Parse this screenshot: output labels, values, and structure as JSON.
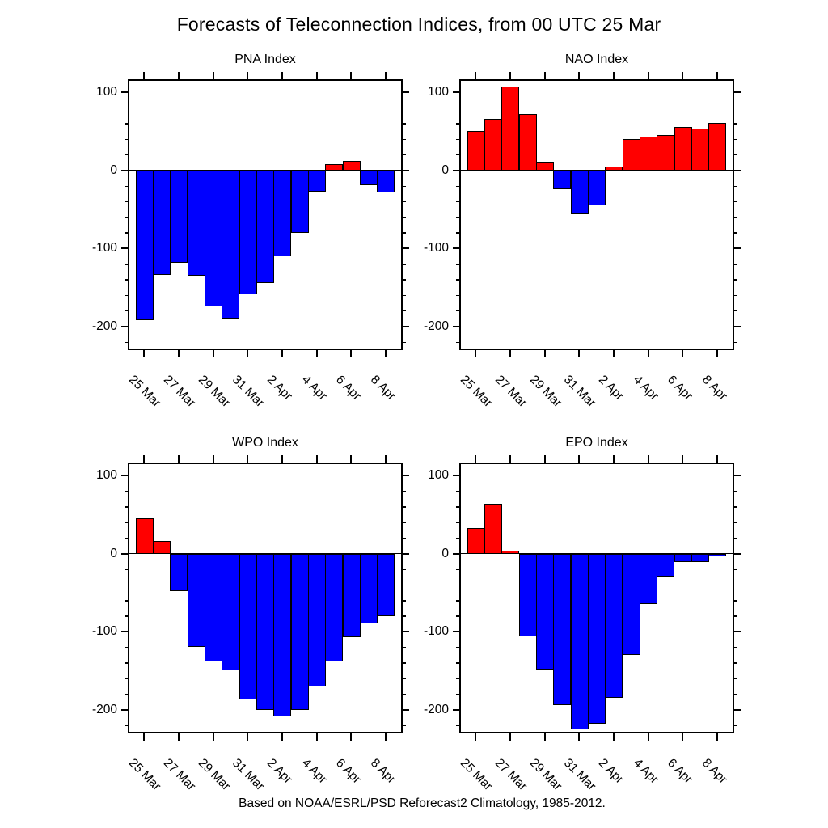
{
  "title": "Forecasts of Teleconnection Indices, from 00 UTC 25 Mar",
  "caption": "Based on NOAA/ESRL/PSD Reforecast2 Climatology, 1985-2012.",
  "colors": {
    "positive_bar": "#ff0000",
    "negative_bar": "#0000ff",
    "axis": "#000000",
    "background": "#ffffff"
  },
  "chart_data": {
    "type": "bar",
    "layout": "2x2 grid of small multiples, shared axes style",
    "categories": [
      "25 Mar",
      "26 Mar",
      "27 Mar",
      "28 Mar",
      "29 Mar",
      "30 Mar",
      "31 Mar",
      "1 Apr",
      "2 Apr",
      "3 Apr",
      "4 Apr",
      "5 Apr",
      "6 Apr",
      "7 Apr",
      "8 Apr"
    ],
    "xtick_labels": [
      "25 Mar",
      "27 Mar",
      "29 Mar",
      "31 Mar",
      "2 Apr",
      "4 Apr",
      "6 Apr",
      "8 Apr"
    ],
    "ytick_major": [
      100,
      0,
      -100,
      -200
    ],
    "ytick_minor_step": 20,
    "ylim": [
      -230,
      117
    ],
    "grid": false,
    "legend": false,
    "bar_color_rule": "red when value >= 0, blue when value < 0",
    "panels": [
      {
        "id": "pna",
        "title": "PNA Index",
        "values": [
          -192,
          -134,
          -118,
          -135,
          -174,
          -190,
          -159,
          -144,
          -110,
          -80,
          -27,
          8,
          12,
          -19,
          -28
        ]
      },
      {
        "id": "nao",
        "title": "NAO Index",
        "values": [
          51,
          66,
          108,
          72,
          11,
          -24,
          -56,
          -45,
          5,
          40,
          43,
          46,
          56,
          54,
          61
        ]
      },
      {
        "id": "wpo",
        "title": "WPO Index",
        "values": [
          46,
          17,
          -48,
          -119,
          -138,
          -149,
          -187,
          -200,
          -208,
          -200,
          -170,
          -138,
          -107,
          -89,
          -80
        ]
      },
      {
        "id": "epo",
        "title": "EPO Index",
        "values": [
          33,
          64,
          4,
          -106,
          -148,
          -194,
          -225,
          -218,
          -184,
          -130,
          -64,
          -29,
          -10,
          -10,
          -3
        ]
      }
    ]
  }
}
